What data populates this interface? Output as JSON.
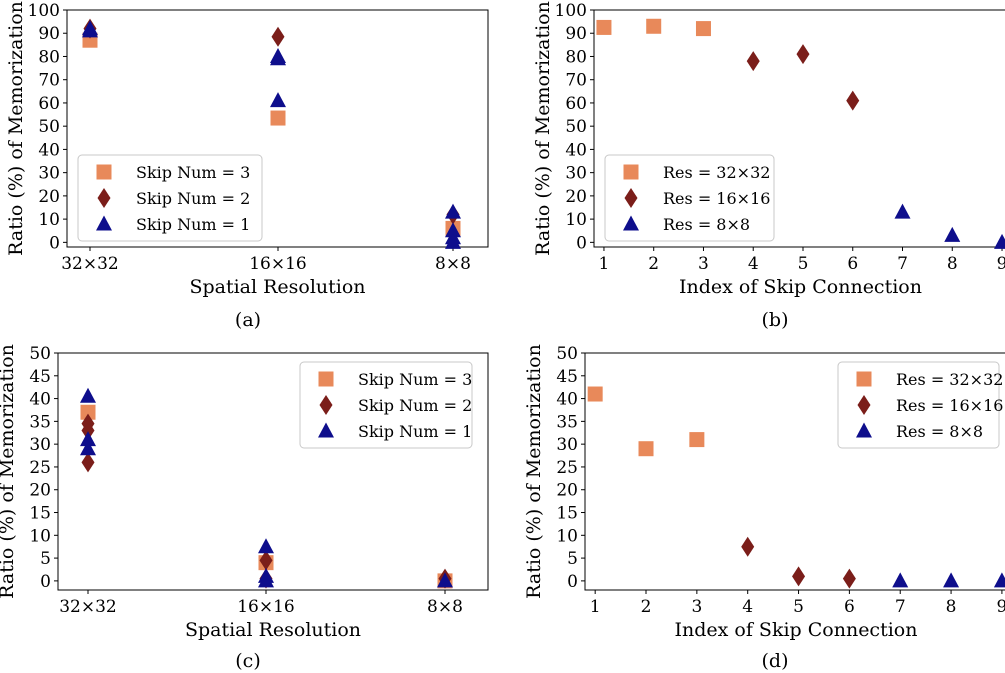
{
  "colors": {
    "res32": "#E8895A",
    "res16": "#7B1E1A",
    "res8": "#0E0E8C"
  },
  "chart_data": [
    {
      "type": "scatter",
      "caption": "(a)",
      "xlabel": "Spatial Resolution",
      "ylabel": "Ratio (%) of Memorization",
      "ylim": [
        -2,
        100
      ],
      "yticks": [
        0,
        10,
        20,
        30,
        40,
        50,
        60,
        70,
        80,
        90,
        100
      ],
      "xcategories": [
        "32×32",
        "16×16",
        "8×8"
      ],
      "legend_position": "lower-left",
      "series": [
        {
          "name": "Skip Num = 3",
          "marker": "square",
          "color": "#E8895A",
          "points": [
            {
              "x": "32×32",
              "y": 87
            },
            {
              "x": "16×16",
              "y": 53.5
            },
            {
              "x": "8×8",
              "y": 6
            }
          ]
        },
        {
          "name": "Skip Num = 2",
          "marker": "diamond",
          "color": "#7B1E1A",
          "points": [
            {
              "x": "32×32",
              "y": 92
            },
            {
              "x": "16×16",
              "y": 88.5
            },
            {
              "x": "8×8",
              "y": 12
            }
          ]
        },
        {
          "name": "Skip Num = 1",
          "marker": "triangle",
          "color": "#0E0E8C",
          "points": [
            {
              "x": "32×32",
              "y": 92
            },
            {
              "x": "32×32",
              "y": 91
            },
            {
              "x": "16×16",
              "y": 80
            },
            {
              "x": "16×16",
              "y": 79
            },
            {
              "x": "16×16",
              "y": 61
            },
            {
              "x": "8×8",
              "y": 13
            },
            {
              "x": "8×8",
              "y": 5
            },
            {
              "x": "8×8",
              "y": 2
            },
            {
              "x": "8×8",
              "y": 0
            }
          ]
        }
      ]
    },
    {
      "type": "scatter",
      "caption": "(b)",
      "xlabel": "Index of Skip Connection",
      "ylabel": "Ratio (%) of Memorization",
      "ylim": [
        -2,
        100
      ],
      "yticks": [
        0,
        10,
        20,
        30,
        40,
        50,
        60,
        70,
        80,
        90,
        100
      ],
      "xlim": [
        0.8,
        9.1
      ],
      "xticks": [
        1,
        2,
        3,
        4,
        5,
        6,
        7,
        8,
        9
      ],
      "legend_position": "lower-left",
      "series": [
        {
          "name": "Res = 32×32",
          "marker": "square",
          "color": "#E8895A",
          "points": [
            {
              "x": 1,
              "y": 92.5
            },
            {
              "x": 2,
              "y": 93
            },
            {
              "x": 3,
              "y": 92
            }
          ]
        },
        {
          "name": "Res = 16×16",
          "marker": "diamond",
          "color": "#7B1E1A",
          "points": [
            {
              "x": 4,
              "y": 78
            },
            {
              "x": 5,
              "y": 81
            },
            {
              "x": 6,
              "y": 61
            }
          ]
        },
        {
          "name": "Res = 8×8",
          "marker": "triangle",
          "color": "#0E0E8C",
          "points": [
            {
              "x": 7,
              "y": 13
            },
            {
              "x": 8,
              "y": 3
            },
            {
              "x": 9,
              "y": 0
            }
          ]
        }
      ]
    },
    {
      "type": "scatter",
      "caption": "(c)",
      "xlabel": "Spatial Resolution",
      "ylabel": "Ratio (%) of Memorization",
      "ylim": [
        -2,
        50
      ],
      "yticks": [
        0,
        5,
        10,
        15,
        20,
        25,
        30,
        35,
        40,
        45,
        50
      ],
      "xcategories": [
        "32×32",
        "16×16",
        "8×8"
      ],
      "legend_position": "upper-right",
      "series": [
        {
          "name": "Skip Num = 3",
          "marker": "square",
          "color": "#E8895A",
          "points": [
            {
              "x": "32×32",
              "y": 37
            },
            {
              "x": "16×16",
              "y": 4
            },
            {
              "x": "8×8",
              "y": 0
            }
          ]
        },
        {
          "name": "Skip Num = 2",
          "marker": "diamond",
          "color": "#7B1E1A",
          "points": [
            {
              "x": "32×32",
              "y": 34.5
            },
            {
              "x": "32×32",
              "y": 33
            },
            {
              "x": "32×32",
              "y": 26
            },
            {
              "x": "16×16",
              "y": 4.5
            },
            {
              "x": "16×16",
              "y": 0.5
            },
            {
              "x": "8×8",
              "y": 0.5
            }
          ]
        },
        {
          "name": "Skip Num = 1",
          "marker": "triangle",
          "color": "#0E0E8C",
          "points": [
            {
              "x": "32×32",
              "y": 40.5
            },
            {
              "x": "32×32",
              "y": 31
            },
            {
              "x": "32×32",
              "y": 29
            },
            {
              "x": "16×16",
              "y": 7.5
            },
            {
              "x": "16×16",
              "y": 1
            },
            {
              "x": "16×16",
              "y": 0
            },
            {
              "x": "8×8",
              "y": 0
            }
          ]
        }
      ]
    },
    {
      "type": "scatter",
      "caption": "(d)",
      "xlabel": "Index of Skip Connection",
      "ylabel": "Ratio (%) of Memorization",
      "ylim": [
        -2,
        50
      ],
      "yticks": [
        0,
        5,
        10,
        15,
        20,
        25,
        30,
        35,
        40,
        45,
        50
      ],
      "xlim": [
        0.8,
        9.1
      ],
      "xticks": [
        1,
        2,
        3,
        4,
        5,
        6,
        7,
        8,
        9
      ],
      "legend_position": "upper-right",
      "series": [
        {
          "name": "Res = 32×32",
          "marker": "square",
          "color": "#E8895A",
          "points": [
            {
              "x": 1,
              "y": 41
            },
            {
              "x": 2,
              "y": 29
            },
            {
              "x": 3,
              "y": 31
            }
          ]
        },
        {
          "name": "Res = 16×16",
          "marker": "diamond",
          "color": "#7B1E1A",
          "points": [
            {
              "x": 4,
              "y": 7.5
            },
            {
              "x": 5,
              "y": 1
            },
            {
              "x": 6,
              "y": 0.5
            }
          ]
        },
        {
          "name": "Res = 8×8",
          "marker": "triangle",
          "color": "#0E0E8C",
          "points": [
            {
              "x": 7,
              "y": 0
            },
            {
              "x": 8,
              "y": 0
            },
            {
              "x": 9,
              "y": 0
            }
          ]
        }
      ]
    }
  ]
}
